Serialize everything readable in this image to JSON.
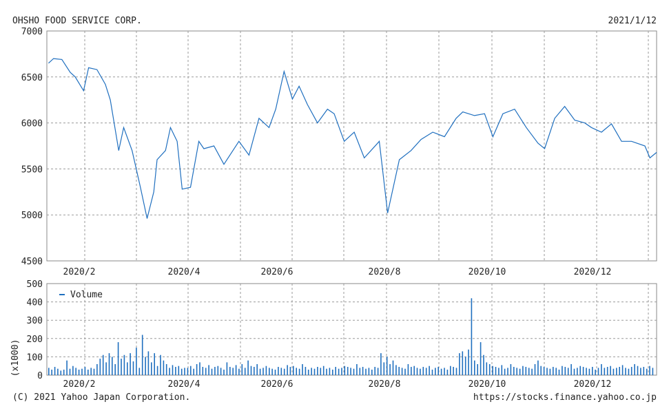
{
  "header": {
    "company": "OHSHO FOOD SERVICE CORP.",
    "date": "2021/1/12"
  },
  "footer": {
    "copyright": "(C) 2021 Yahoo Japan Corporation.",
    "url": "https://stocks.finance.yahoo.co.jp"
  },
  "colors": {
    "line": "#1f6fbf",
    "volume": "#1f6fbf",
    "grid": "#9a9a9a",
    "frame": "#8a8a8a"
  },
  "chart_data": [
    {
      "type": "line",
      "name": "price",
      "ylim": [
        4500,
        7000
      ],
      "yticks": [
        "7000",
        "6500",
        "6000",
        "5500",
        "5000",
        "4500"
      ],
      "yticks_values": [
        7000,
        6500,
        6000,
        5500,
        5000,
        4500
      ],
      "xlabels": [
        "2020/2",
        "2020/4",
        "2020/6",
        "2020/8",
        "2020/10",
        "2020/12"
      ],
      "grid": true,
      "x": [
        "2020-01-14",
        "2020-01-17",
        "2020-01-22",
        "2020-01-27",
        "2020-01-30",
        "2020-02-04",
        "2020-02-07",
        "2020-02-12",
        "2020-02-17",
        "2020-02-20",
        "2020-02-25",
        "2020-02-28",
        "2020-03-04",
        "2020-03-09",
        "2020-03-13",
        "2020-03-17",
        "2020-03-19",
        "2020-03-24",
        "2020-03-27",
        "2020-03-31",
        "2020-04-03",
        "2020-04-08",
        "2020-04-13",
        "2020-04-16",
        "2020-04-22",
        "2020-04-28",
        "2020-05-07",
        "2020-05-13",
        "2020-05-19",
        "2020-05-25",
        "2020-05-29",
        "2020-06-03",
        "2020-06-08",
        "2020-06-12",
        "2020-06-17",
        "2020-06-23",
        "2020-06-29",
        "2020-07-03",
        "2020-07-09",
        "2020-07-15",
        "2020-07-21",
        "2020-07-28",
        "2020-07-30",
        "2020-08-04",
        "2020-08-11",
        "2020-08-18",
        "2020-08-24",
        "2020-08-31",
        "2020-09-07",
        "2020-09-14",
        "2020-09-18",
        "2020-09-25",
        "2020-10-01",
        "2020-10-06",
        "2020-10-12",
        "2020-10-19",
        "2020-10-26",
        "2020-11-02",
        "2020-11-06",
        "2020-11-12",
        "2020-11-18",
        "2020-11-24",
        "2020-11-30",
        "2020-12-04",
        "2020-12-10",
        "2020-12-16",
        "2020-12-22",
        "2020-12-28",
        "2021-01-05",
        "2021-01-08",
        "2021-01-12"
      ],
      "y": [
        6650,
        6700,
        6690,
        6550,
        6500,
        6350,
        6600,
        6580,
        6420,
        6250,
        5700,
        5950,
        5700,
        5300,
        4960,
        5250,
        5600,
        5700,
        5950,
        5800,
        5280,
        5300,
        5800,
        5720,
        5750,
        5550,
        5800,
        5650,
        6050,
        5950,
        6150,
        6560,
        6260,
        6400,
        6200,
        6000,
        6150,
        6100,
        5800,
        5900,
        5620,
        5760,
        5800,
        5020,
        5600,
        5700,
        5820,
        5900,
        5850,
        6050,
        6120,
        6080,
        6100,
        5850,
        6100,
        6150,
        5950,
        5780,
        5720,
        6050,
        6180,
        6030,
        6000,
        5950,
        5900,
        5990,
        5800,
        5800,
        5750,
        5620,
        5680
      ]
    },
    {
      "type": "bar",
      "name": "Volume",
      "legend": "Volume",
      "ylabel": "(x1000)",
      "ylim": [
        0,
        500
      ],
      "yticks": [
        "500",
        "400",
        "300",
        "200",
        "100",
        "0"
      ],
      "yticks_values": [
        500,
        400,
        300,
        200,
        100,
        0
      ],
      "xlabels": [
        "2020/2",
        "2020/4",
        "2020/6",
        "2020/8",
        "2020/10",
        "2020/12"
      ],
      "grid": true,
      "values": [
        40,
        30,
        45,
        35,
        25,
        30,
        80,
        35,
        50,
        40,
        30,
        35,
        45,
        30,
        40,
        35,
        60,
        90,
        110,
        70,
        120,
        100,
        60,
        180,
        90,
        110,
        70,
        120,
        75,
        150,
        40,
        220,
        100,
        130,
        70,
        120,
        50,
        110,
        80,
        60,
        40,
        55,
        45,
        50,
        35,
        40,
        40,
        50,
        35,
        60,
        70,
        45,
        40,
        55,
        35,
        45,
        50,
        40,
        30,
        70,
        45,
        40,
        55,
        35,
        60,
        40,
        80,
        50,
        45,
        60,
        35,
        40,
        50,
        40,
        35,
        30,
        45,
        40,
        35,
        55,
        45,
        50,
        40,
        35,
        60,
        45,
        30,
        40,
        35,
        45,
        40,
        50,
        35,
        40,
        30,
        45,
        35,
        40,
        50,
        45,
        40,
        35,
        60,
        40,
        45,
        35,
        40,
        30,
        45,
        40,
        120,
        70,
        100,
        60,
        80,
        55,
        45,
        40,
        35,
        60,
        45,
        50,
        40,
        35,
        45,
        40,
        50,
        30,
        40,
        45,
        35,
        40,
        30,
        50,
        45,
        40,
        120,
        130,
        100,
        140,
        420,
        80,
        60,
        180,
        110,
        70,
        60,
        50,
        45,
        40,
        55,
        35,
        40,
        60,
        45,
        40,
        35,
        50,
        45,
        40,
        35,
        60,
        80,
        50,
        45,
        40,
        35,
        45,
        40,
        30,
        50,
        45,
        40,
        60,
        35,
        40,
        50,
        45,
        40,
        35,
        45,
        30,
        40,
        60,
        40,
        45,
        50,
        35,
        40,
        45,
        55,
        40,
        35,
        45,
        60,
        50,
        40,
        45,
        35,
        50,
        40
      ]
    }
  ]
}
